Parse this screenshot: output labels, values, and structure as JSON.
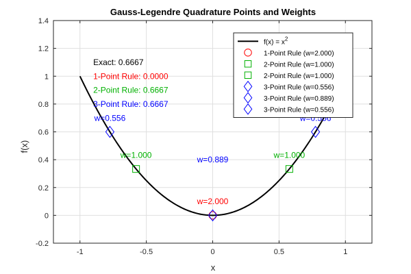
{
  "chart_data": {
    "type": "scatter",
    "title": "Gauss-Legendre Quadrature Points and Weights",
    "xlabel": "x",
    "ylabel": "f(x)",
    "xlim": [
      -1.2,
      1.2
    ],
    "ylim": [
      -0.2,
      1.4
    ],
    "xticks": [
      -1,
      -0.5,
      0,
      0.5,
      1
    ],
    "xtick_labels": [
      "-1",
      "-0.5",
      "0",
      "0.5",
      "1"
    ],
    "yticks": [
      -0.2,
      0,
      0.2,
      0.4,
      0.6,
      0.8,
      1,
      1.2,
      1.4
    ],
    "ytick_labels": [
      "-0.2",
      "0",
      "0.2",
      "0.4",
      "0.6",
      "0.8",
      "1",
      "1.2",
      "1.4"
    ],
    "grid": true,
    "legend_location": "top-right",
    "curve": {
      "name_base": "f(x) = x",
      "name_sup": "2",
      "x_range": [
        -1,
        1
      ],
      "color": "#000000"
    },
    "series": [
      {
        "name": "1-Point Rule (w=2.000)",
        "marker": "circle",
        "color": "#ff0000",
        "x": [
          0
        ],
        "y": [
          0
        ]
      },
      {
        "name": "2-Point Rule (w=1.000)",
        "marker": "square",
        "color": "#00b000",
        "x": [
          -0.5774
        ],
        "y": [
          0.3333
        ]
      },
      {
        "name": "2-Point Rule (w=1.000)",
        "marker": "square",
        "color": "#00b000",
        "x": [
          0.5774
        ],
        "y": [
          0.3333
        ]
      },
      {
        "name": "3-Point Rule (w=0.556)",
        "marker": "diamond",
        "color": "#0000ff",
        "x": [
          -0.7746
        ],
        "y": [
          0.6
        ]
      },
      {
        "name": "3-Point Rule (w=0.889)",
        "marker": "diamond",
        "color": "#0000ff",
        "x": [
          0
        ],
        "y": [
          0
        ]
      },
      {
        "name": "3-Point Rule (w=0.556)",
        "marker": "diamond",
        "color": "#0000ff",
        "x": [
          0.7746
        ],
        "y": [
          0.6
        ]
      }
    ],
    "weight_labels": [
      {
        "text": "w=2.000",
        "x": 0,
        "y": 0.08,
        "color": "#ff0000"
      },
      {
        "text": "w=1.000",
        "x": -0.5774,
        "y": 0.413,
        "color": "#00b000"
      },
      {
        "text": "w=1.000",
        "x": 0.5774,
        "y": 0.413,
        "color": "#00b000"
      },
      {
        "text": "w=0.556",
        "x": -0.7746,
        "y": 0.68,
        "color": "#0000ff"
      },
      {
        "text": "w=0.889",
        "x": 0,
        "y": 0.38,
        "color": "#0000ff"
      },
      {
        "text": "w=0.556",
        "x": 0.7746,
        "y": 0.68,
        "color": "#0000ff"
      }
    ],
    "info_text": [
      {
        "text": "Exact: 0.6667",
        "color": "#000000",
        "x": -0.9,
        "y": 1.1
      },
      {
        "text": "1-Point Rule: 0.0000",
        "color": "#ff0000",
        "x": -0.9,
        "y": 1
      },
      {
        "text": "2-Point Rule: 0.6667",
        "color": "#00b000",
        "x": -0.9,
        "y": 0.9
      },
      {
        "text": "3-Point Rule: 0.6667",
        "color": "#0000ff",
        "x": -0.9,
        "y": 0.8
      }
    ]
  }
}
